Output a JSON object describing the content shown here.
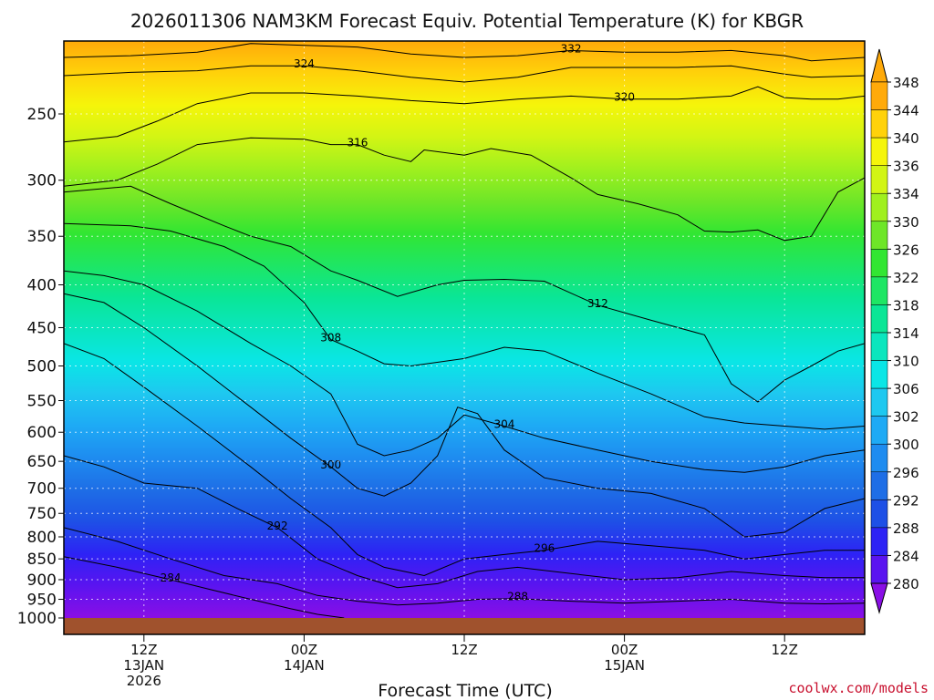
{
  "chart_data": {
    "type": "contour",
    "title": "2026011306 NAM3KM Forecast Equiv. Potential Temperature (K) for KBGR",
    "xlabel": "Forecast Time (UTC)",
    "ylabel": "",
    "credit": "coolwx.com/models",
    "y_axis": {
      "scale": "pressure",
      "range": [
        200,
        1000
      ],
      "ticks": [
        250,
        300,
        350,
        400,
        450,
        500,
        550,
        600,
        650,
        700,
        750,
        800,
        850,
        900,
        950,
        1000
      ]
    },
    "x_axis": {
      "range_hours": [
        0,
        60
      ],
      "ticks": [
        {
          "hour": 6,
          "lines": [
            "12Z",
            "13JAN",
            "2026"
          ]
        },
        {
          "hour": 18,
          "lines": [
            "00Z",
            "14JAN"
          ]
        },
        {
          "hour": 30,
          "lines": [
            "12Z"
          ]
        },
        {
          "hour": 42,
          "lines": [
            "00Z",
            "15JAN"
          ]
        },
        {
          "hour": 54,
          "lines": [
            "12Z"
          ]
        }
      ]
    },
    "colorbar": {
      "levels": [
        280,
        284,
        288,
        292,
        296,
        300,
        302,
        306,
        310,
        314,
        318,
        322,
        326,
        330,
        334,
        336,
        340,
        344,
        348
      ],
      "colors": [
        "#8a0fe6",
        "#5a14f0",
        "#2d23f5",
        "#1e50e6",
        "#1e6ee6",
        "#1e8cf0",
        "#1eaaf5",
        "#1ec8f0",
        "#0ae6e6",
        "#0ae6be",
        "#0ae696",
        "#1ee664",
        "#32e632",
        "#6ee628",
        "#a0f01e",
        "#d2f514",
        "#f5f50a",
        "#ffd20a",
        "#ffaa0a"
      ]
    },
    "contours": [
      {
        "label": "332",
        "points": [
          [
            0,
            214
          ],
          [
            5,
            213
          ],
          [
            10,
            211
          ],
          [
            14,
            206
          ],
          [
            18,
            207
          ],
          [
            22,
            208
          ],
          [
            26,
            212
          ],
          [
            30,
            214
          ],
          [
            34,
            213
          ],
          [
            38,
            210
          ],
          [
            42,
            211
          ],
          [
            46,
            211
          ],
          [
            50,
            210
          ],
          [
            54,
            213
          ],
          [
            56,
            216
          ],
          [
            60,
            214
          ]
        ]
      },
      {
        "label": "324",
        "points": [
          [
            0,
            225
          ],
          [
            5,
            223
          ],
          [
            10,
            222
          ],
          [
            14,
            219
          ],
          [
            18,
            219
          ],
          [
            22,
            222
          ],
          [
            26,
            226
          ],
          [
            30,
            229
          ],
          [
            34,
            226
          ],
          [
            38,
            220
          ],
          [
            42,
            220
          ],
          [
            46,
            220
          ],
          [
            50,
            219
          ],
          [
            54,
            224
          ],
          [
            56,
            226
          ],
          [
            60,
            225
          ]
        ]
      },
      {
        "label": "320",
        "points": [
          [
            0,
            270
          ],
          [
            4,
            266
          ],
          [
            7,
            255
          ],
          [
            10,
            243
          ],
          [
            14,
            236
          ],
          [
            18,
            236
          ],
          [
            22,
            238
          ],
          [
            26,
            241
          ],
          [
            30,
            243
          ],
          [
            34,
            240
          ],
          [
            38,
            238
          ],
          [
            42,
            240
          ],
          [
            46,
            240
          ],
          [
            50,
            238
          ],
          [
            52,
            232
          ],
          [
            54,
            239
          ],
          [
            56,
            240
          ],
          [
            58,
            240
          ],
          [
            60,
            238
          ]
        ]
      },
      {
        "label": "316",
        "points": [
          [
            0,
            305
          ],
          [
            4,
            300
          ],
          [
            7,
            287
          ],
          [
            10,
            272
          ],
          [
            14,
            267
          ],
          [
            18,
            268
          ],
          [
            20,
            272
          ],
          [
            22,
            272
          ],
          [
            24,
            280
          ],
          [
            26,
            285
          ],
          [
            27,
            276
          ],
          [
            30,
            280
          ],
          [
            32,
            275
          ],
          [
            35,
            280
          ],
          [
            38,
            298
          ],
          [
            40,
            312
          ],
          [
            43,
            320
          ],
          [
            46,
            330
          ],
          [
            48,
            345
          ],
          [
            50,
            346
          ],
          [
            52,
            344
          ],
          [
            54,
            354
          ],
          [
            56,
            350
          ],
          [
            58,
            310
          ],
          [
            60,
            298
          ]
        ]
      },
      {
        "label": "312",
        "points": [
          [
            0,
            310
          ],
          [
            5,
            305
          ],
          [
            8,
            320
          ],
          [
            12,
            340
          ],
          [
            14,
            350
          ],
          [
            17,
            360
          ],
          [
            20,
            385
          ],
          [
            22,
            395
          ],
          [
            25,
            413
          ],
          [
            28,
            400
          ],
          [
            30,
            395
          ],
          [
            33,
            394
          ],
          [
            36,
            396
          ],
          [
            40,
            423
          ],
          [
            44,
            441
          ],
          [
            48,
            459
          ],
          [
            50,
            525
          ],
          [
            52,
            552
          ],
          [
            54,
            520
          ],
          [
            56,
            500
          ],
          [
            58,
            480
          ],
          [
            60,
            470
          ]
        ]
      },
      {
        "label": "308",
        "points": [
          [
            0,
            338
          ],
          [
            5,
            340
          ],
          [
            8,
            345
          ],
          [
            12,
            360
          ],
          [
            15,
            380
          ],
          [
            18,
            420
          ],
          [
            20,
            465
          ],
          [
            22,
            480
          ],
          [
            24,
            497
          ],
          [
            26,
            500
          ],
          [
            30,
            490
          ],
          [
            33,
            475
          ],
          [
            36,
            480
          ],
          [
            40,
            510
          ],
          [
            44,
            540
          ],
          [
            48,
            575
          ],
          [
            51,
            585
          ],
          [
            54,
            590
          ],
          [
            57,
            595
          ],
          [
            60,
            590
          ]
        ]
      },
      {
        "label": "304",
        "points": [
          [
            0,
            385
          ],
          [
            3,
            390
          ],
          [
            6,
            400
          ],
          [
            10,
            430
          ],
          [
            14,
            470
          ],
          [
            17,
            500
          ],
          [
            20,
            540
          ],
          [
            22,
            620
          ],
          [
            24,
            640
          ],
          [
            26,
            630
          ],
          [
            28,
            610
          ],
          [
            30,
            572
          ],
          [
            33,
            590
          ],
          [
            36,
            610
          ],
          [
            40,
            630
          ],
          [
            44,
            650
          ],
          [
            48,
            665
          ],
          [
            51,
            670
          ],
          [
            54,
            660
          ],
          [
            57,
            640
          ],
          [
            60,
            630
          ]
        ]
      },
      {
        "label": "300",
        "points": [
          [
            0,
            410
          ],
          [
            3,
            420
          ],
          [
            6,
            450
          ],
          [
            10,
            500
          ],
          [
            14,
            560
          ],
          [
            17,
            610
          ],
          [
            20,
            660
          ],
          [
            22,
            700
          ],
          [
            24,
            715
          ],
          [
            26,
            690
          ],
          [
            28,
            640
          ],
          [
            29.5,
            560
          ],
          [
            31,
            570
          ],
          [
            33,
            630
          ],
          [
            36,
            680
          ],
          [
            40,
            700
          ],
          [
            44,
            710
          ],
          [
            48,
            740
          ],
          [
            51,
            800
          ],
          [
            54,
            790
          ],
          [
            57,
            740
          ],
          [
            60,
            720
          ]
        ]
      },
      {
        "label": "296",
        "points": [
          [
            0,
            470
          ],
          [
            3,
            490
          ],
          [
            6,
            530
          ],
          [
            10,
            590
          ],
          [
            14,
            660
          ],
          [
            17,
            720
          ],
          [
            20,
            780
          ],
          [
            22,
            840
          ],
          [
            24,
            870
          ],
          [
            27,
            890
          ],
          [
            30,
            850
          ],
          [
            33,
            840
          ],
          [
            36,
            830
          ],
          [
            40,
            810
          ],
          [
            44,
            820
          ],
          [
            48,
            830
          ],
          [
            51,
            850
          ],
          [
            54,
            840
          ],
          [
            57,
            830
          ],
          [
            60,
            830
          ]
        ]
      },
      {
        "label": "292",
        "points": [
          [
            0,
            640
          ],
          [
            3,
            660
          ],
          [
            6,
            690
          ],
          [
            10,
            700
          ],
          [
            13,
            740
          ],
          [
            16,
            780
          ],
          [
            19,
            850
          ],
          [
            22,
            890
          ],
          [
            25,
            920
          ],
          [
            28,
            910
          ],
          [
            31,
            880
          ],
          [
            34,
            870
          ],
          [
            38,
            885
          ],
          [
            42,
            900
          ],
          [
            46,
            895
          ],
          [
            50,
            880
          ],
          [
            54,
            890
          ],
          [
            57,
            895
          ],
          [
            60,
            895
          ]
        ]
      },
      {
        "label": "288",
        "points": [
          [
            0,
            780
          ],
          [
            4,
            810
          ],
          [
            8,
            850
          ],
          [
            12,
            890
          ],
          [
            16,
            910
          ],
          [
            19,
            940
          ],
          [
            22,
            955
          ],
          [
            25,
            965
          ],
          [
            28,
            960
          ],
          [
            31,
            950
          ],
          [
            34,
            948
          ],
          [
            38,
            955
          ],
          [
            42,
            960
          ],
          [
            46,
            955
          ],
          [
            50,
            950
          ],
          [
            54,
            960
          ],
          [
            57,
            962
          ],
          [
            60,
            960
          ]
        ]
      },
      {
        "label": "284",
        "points": [
          [
            0,
            845
          ],
          [
            4,
            870
          ],
          [
            8,
            900
          ],
          [
            11,
            925
          ],
          [
            14,
            950
          ],
          [
            17,
            975
          ],
          [
            19,
            990
          ],
          [
            21,
            1000
          ]
        ]
      }
    ],
    "ground_color": "#a0522d"
  }
}
